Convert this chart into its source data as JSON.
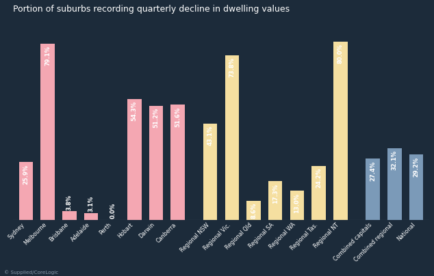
{
  "title": "Portion of suburbs recording quarterly decline in dwelling values",
  "categories": [
    "Sydney",
    "Melbourne",
    "Brisbane",
    "Adelaide",
    "Perth",
    "Hobart",
    "Darwin",
    "Canberra",
    "Regional NSW",
    "Regional Vic.",
    "Regional Qld",
    "Regional SA",
    "Regional WA",
    "Regional Tas.",
    "Regional NT",
    "Combined capitals",
    "Combined regional",
    "National"
  ],
  "values": [
    25.9,
    79.1,
    3.8,
    3.1,
    0.0,
    54.3,
    51.2,
    51.6,
    43.1,
    73.8,
    8.6,
    17.3,
    13.0,
    24.2,
    80.0,
    27.4,
    32.1,
    29.2
  ],
  "colors": [
    "#F4A7B2",
    "#F4A7B2",
    "#F4A7B2",
    "#F4A7B2",
    "#F4A7B2",
    "#F4A7B2",
    "#F4A7B2",
    "#F4A7B2",
    "#F5DFA0",
    "#F5DFA0",
    "#F5DFA0",
    "#F5DFA0",
    "#F5DFA0",
    "#F5DFA0",
    "#F5DFA0",
    "#7B9AB8",
    "#7B9AB8",
    "#7B9AB8"
  ],
  "background_color": "#1C2B3A",
  "text_color": "#FFFFFF",
  "title_fontsize": 9.0,
  "tick_fontsize": 5.8,
  "value_fontsize": 6.0,
  "ylim": [
    0,
    90
  ],
  "footer": "© Supplied/CoreLogic",
  "bar_width": 0.65
}
